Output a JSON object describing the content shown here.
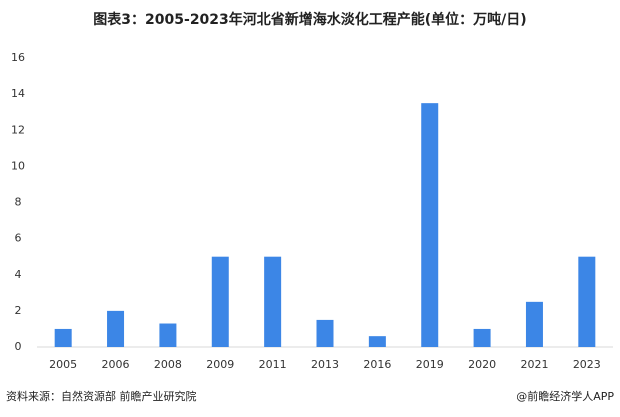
{
  "chart_data": {
    "type": "bar",
    "title": "图表3：2005-2023年河北省新增海水淡化工程产能(单位：万吨/日)",
    "categories": [
      "2005",
      "2006",
      "2008",
      "2009",
      "2011",
      "2013",
      "2016",
      "2019",
      "2020",
      "2021",
      "2023"
    ],
    "values": [
      1,
      2,
      1.3,
      5,
      5,
      1.5,
      0.6,
      13.5,
      1,
      2.5,
      5
    ],
    "color": "#3c86e6",
    "ylim": [
      0,
      16
    ],
    "yticks": [
      0,
      2,
      4,
      6,
      8,
      10,
      12,
      14,
      16
    ],
    "grid": false,
    "source": "资料来源：自然资源部 前瞻产业研究院",
    "credit": "@前瞻经济学人APP"
  }
}
